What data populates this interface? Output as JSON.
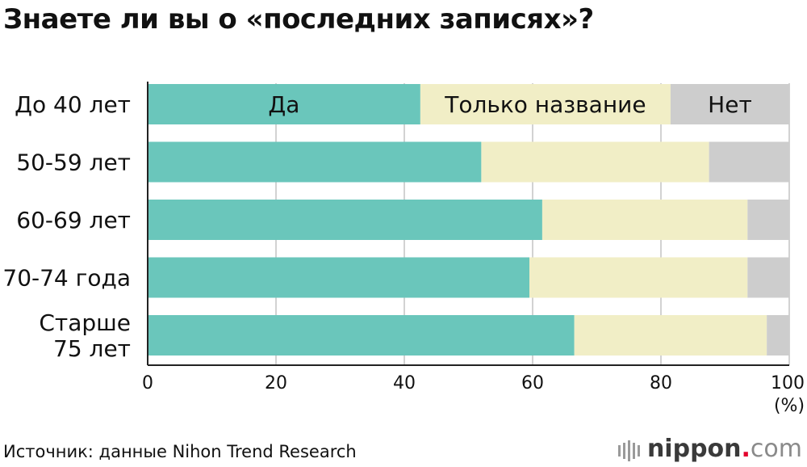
{
  "title": "Знаете ли вы о «последних записях»?",
  "source": "Источник: данные Nihon Trend Research",
  "brand": {
    "name": "nippon",
    "dot": ".",
    "tld": "com"
  },
  "colors": {
    "yes": "#6ac6bb",
    "name_only": "#f1eec6",
    "no": "#cdcdcd",
    "grid": "#c4c4c4",
    "axis": "#222222"
  },
  "chart_data": {
    "type": "bar",
    "orientation": "horizontal",
    "stacked": true,
    "categories": [
      [
        "До 40 лет"
      ],
      [
        "50-59 лет"
      ],
      [
        "60-69 лет"
      ],
      [
        "70-74 года"
      ],
      [
        "Старше",
        "75 лет"
      ]
    ],
    "series": [
      {
        "name": "Да",
        "color": "#6ac6bb",
        "values": [
          42.5,
          52,
          61.5,
          59.5,
          66.5
        ]
      },
      {
        "name": "Только название",
        "color": "#f1eec6",
        "values": [
          39,
          35.5,
          32,
          34,
          30
        ]
      },
      {
        "name": "Нет",
        "color": "#cdcdcd",
        "values": [
          18.5,
          12.5,
          6.5,
          6.5,
          3.5
        ]
      }
    ],
    "in_bar_labels_row": 0,
    "xlim": [
      0,
      100
    ],
    "xticks": [
      "0",
      "20",
      "40",
      "60",
      "80",
      "100"
    ],
    "xticks_values": [
      0,
      20,
      40,
      60,
      80,
      100
    ],
    "xlabel": "(%)",
    "grid": true
  }
}
